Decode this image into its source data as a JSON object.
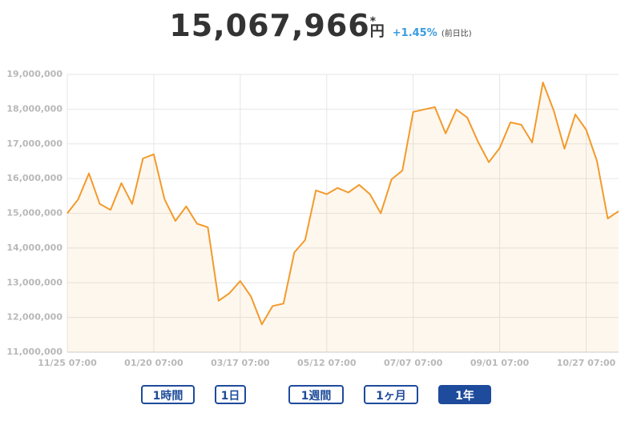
{
  "header": {
    "price": "15,067,966",
    "mark": "*",
    "unit": "円",
    "change": "+1.45%",
    "change_note": "(前日比)"
  },
  "chart_data": {
    "type": "line",
    "categories": [
      "11/25 07:00",
      null,
      null,
      null,
      null,
      null,
      null,
      null,
      "01/20 07:00",
      null,
      null,
      null,
      null,
      null,
      null,
      null,
      "03/17 07:00",
      null,
      null,
      null,
      null,
      null,
      null,
      null,
      "05/12 07:00",
      null,
      null,
      null,
      null,
      null,
      null,
      null,
      "07/07 07:00",
      null,
      null,
      null,
      null,
      null,
      null,
      null,
      "09/01 07:00",
      null,
      null,
      null,
      null,
      null,
      null,
      null,
      "10/27 07:00",
      null,
      null,
      null
    ],
    "values": [
      15000000,
      15400000,
      16150000,
      15270000,
      15100000,
      15870000,
      15270000,
      16580000,
      16700000,
      15400000,
      14780000,
      15200000,
      14700000,
      14600000,
      12480000,
      12700000,
      13050000,
      12600000,
      11800000,
      12330000,
      12400000,
      13870000,
      14230000,
      15660000,
      15550000,
      15730000,
      15600000,
      15820000,
      15550000,
      15000000,
      15980000,
      16230000,
      17920000,
      17990000,
      18060000,
      17300000,
      17990000,
      17760000,
      17060000,
      16470000,
      16880000,
      17620000,
      17550000,
      17040000,
      18770000,
      17960000,
      16860000,
      17850000,
      17410000,
      16510000,
      14850000,
      15060000
    ],
    "color": "#f39a2b",
    "ylim": [
      11000000,
      19000000
    ],
    "yticks": [
      {
        "value": 11000000,
        "label": "11,000,000"
      },
      {
        "value": 12000000,
        "label": "12,000,000"
      },
      {
        "value": 13000000,
        "label": "13,000,000"
      },
      {
        "value": 14000000,
        "label": "14,000,000"
      },
      {
        "value": 15000000,
        "label": "15,000,000"
      },
      {
        "value": 16000000,
        "label": "16,000,000"
      },
      {
        "value": 17000000,
        "label": "17,000,000"
      },
      {
        "value": 18000000,
        "label": "18,000,000"
      },
      {
        "value": 19000000,
        "label": "19,000,000"
      }
    ],
    "grid": true
  },
  "buttons": [
    "1時間",
    "1日",
    "1週間",
    "1ヶ月",
    "1年"
  ],
  "active_button": 4
}
